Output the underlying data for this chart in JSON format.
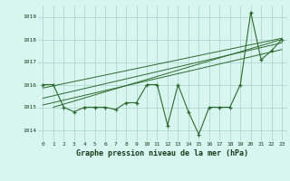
{
  "hours": [
    0,
    1,
    2,
    3,
    4,
    5,
    6,
    7,
    8,
    9,
    10,
    11,
    12,
    13,
    14,
    15,
    16,
    17,
    18,
    19,
    20,
    21,
    22,
    23
  ],
  "pressure": [
    1016.0,
    1016.0,
    1015.0,
    1014.8,
    1015.0,
    1015.0,
    1015.0,
    1014.9,
    1015.2,
    1015.2,
    1016.0,
    1016.0,
    1014.2,
    1016.0,
    1014.8,
    1013.8,
    1015.0,
    1015.0,
    1015.0,
    1016.0,
    1019.2,
    1017.1,
    1017.5,
    1018.0
  ],
  "line_color": "#2d6a2d",
  "marker_color": "#2d6a2d",
  "bg_color": "#d8f5f0",
  "grid_color": "#b0d8d0",
  "title": "Graphe pression niveau de la mer (hPa)",
  "ylim": [
    1013.5,
    1019.5
  ],
  "xlim": [
    -0.5,
    23.5
  ],
  "yticks": [
    1014,
    1015,
    1016,
    1017,
    1018,
    1019
  ],
  "xtick_labels": [
    "0",
    "1",
    "2",
    "3",
    "4",
    "5",
    "6",
    "7",
    "8",
    "9",
    "10",
    "11",
    "12",
    "13",
    "14",
    "15",
    "16",
    "17",
    "18",
    "19",
    "20",
    "21",
    "22",
    "23"
  ],
  "trend_color": "#2d6a2d",
  "trend_lines": [
    [
      [
        0,
        1015.85
      ],
      [
        23,
        1018.05
      ]
    ],
    [
      [
        0,
        1015.4
      ],
      [
        23,
        1017.85
      ]
    ],
    [
      [
        0,
        1015.1
      ],
      [
        23,
        1017.55
      ]
    ],
    [
      [
        1,
        1015.0
      ],
      [
        23,
        1018.0
      ]
    ]
  ]
}
